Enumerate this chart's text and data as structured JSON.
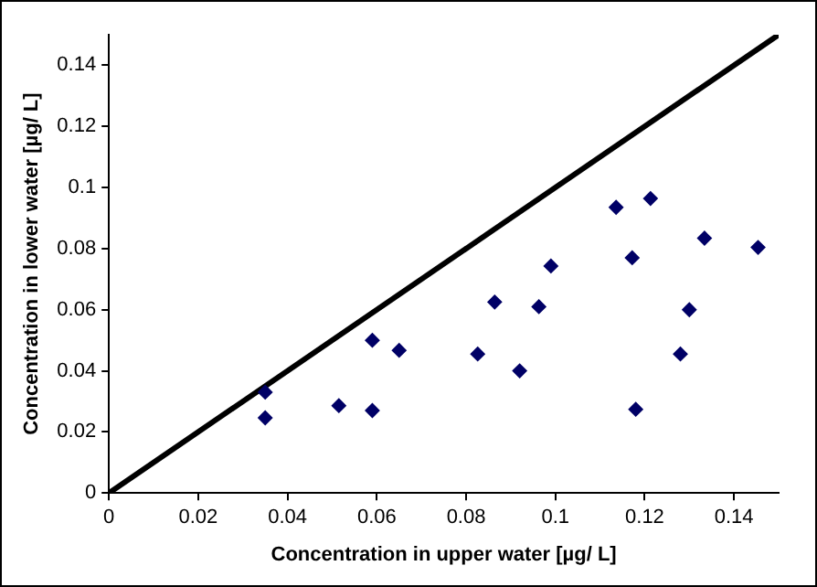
{
  "chart_data": {
    "type": "scatter",
    "xlabel": "Concentration in upper water [µg/ L]",
    "ylabel": "Concentration in lower water [µg/ L]",
    "xlim": [
      0,
      0.15
    ],
    "ylim": [
      0,
      0.15
    ],
    "xticks": [
      0,
      0.02,
      0.04,
      0.06,
      0.08,
      0.1,
      0.12,
      0.14
    ],
    "yticks": [
      0,
      0.02,
      0.04,
      0.06,
      0.08,
      0.1,
      0.12,
      0.14
    ],
    "grid": false,
    "legend": false,
    "series": [
      {
        "type": "scatter",
        "color": "#000066",
        "marker": "diamond",
        "x": [
          0.035,
          0.035,
          0.0515,
          0.059,
          0.059,
          0.065,
          0.0826,
          0.0864,
          0.092,
          0.0963,
          0.099,
          0.1136,
          0.1172,
          0.118,
          0.1213,
          0.128,
          0.13,
          0.1334,
          0.1454
        ],
        "values": [
          0.033,
          0.0246,
          0.0286,
          0.05,
          0.027,
          0.0467,
          0.0455,
          0.0625,
          0.04,
          0.061,
          0.0743,
          0.0935,
          0.077,
          0.0274,
          0.0964,
          0.0455,
          0.06,
          0.0834,
          0.0804
        ]
      },
      {
        "type": "line",
        "color": "#000000",
        "marker": "none",
        "line_style": "solid",
        "x": [
          0,
          0.15
        ],
        "values": [
          0,
          0.15
        ]
      }
    ]
  }
}
